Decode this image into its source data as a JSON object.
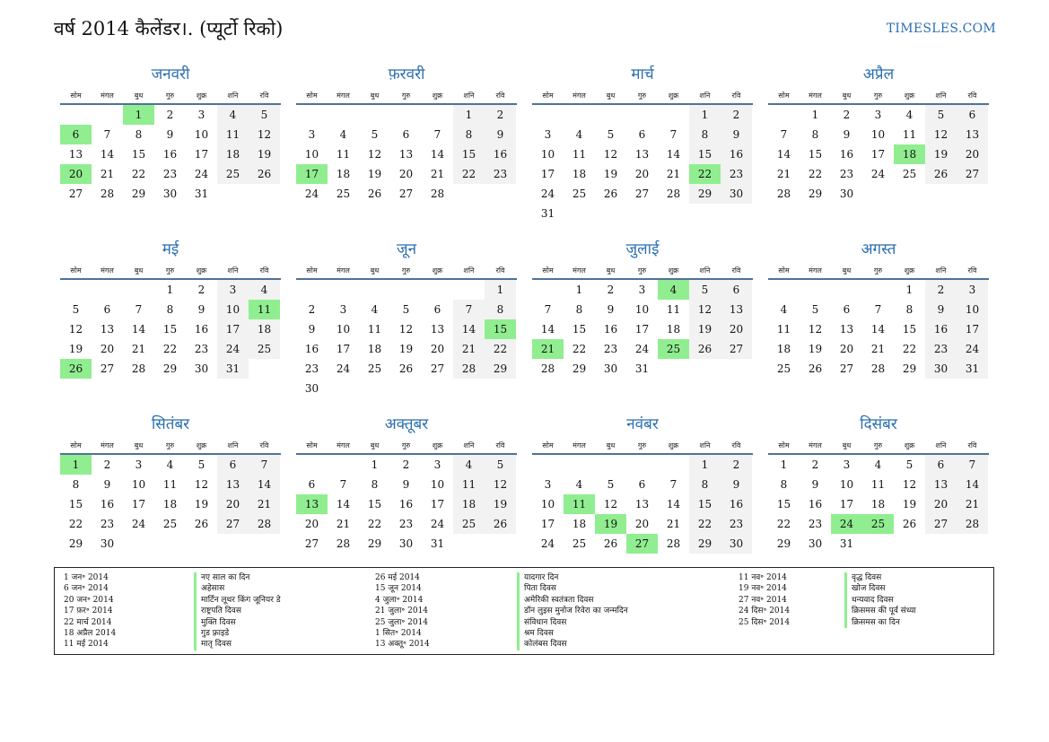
{
  "header": {
    "title": "वर्ष 2014 कैलेंडर।. (प्यूर्टो रिको)",
    "site": "TIMESLES.COM"
  },
  "weekdays": [
    "सोम",
    "मंगल",
    "बुध",
    "गुरु",
    "शुक्र",
    "शनि",
    "रवि"
  ],
  "months": [
    {
      "name": "जनवरी",
      "offset": 2,
      "days": 31,
      "holidays": [
        1,
        6,
        20
      ]
    },
    {
      "name": "फ़रवरी",
      "offset": 5,
      "days": 28,
      "holidays": [
        17
      ]
    },
    {
      "name": "मार्च",
      "offset": 5,
      "days": 31,
      "holidays": [
        22
      ]
    },
    {
      "name": "अप्रैल",
      "offset": 1,
      "days": 30,
      "holidays": [
        18
      ]
    },
    {
      "name": "मई",
      "offset": 3,
      "days": 31,
      "holidays": [
        11,
        26
      ]
    },
    {
      "name": "जून",
      "offset": 6,
      "days": 30,
      "holidays": [
        15
      ]
    },
    {
      "name": "जुलाई",
      "offset": 1,
      "days": 31,
      "holidays": [
        4,
        21,
        25
      ]
    },
    {
      "name": "अगस्त",
      "offset": 4,
      "days": 31,
      "holidays": []
    },
    {
      "name": "सितंबर",
      "offset": 0,
      "days": 30,
      "holidays": [
        1
      ]
    },
    {
      "name": "अक्तूबर",
      "offset": 2,
      "days": 31,
      "holidays": [
        13
      ]
    },
    {
      "name": "नवंबर",
      "offset": 5,
      "days": 30,
      "holidays": [
        11,
        19,
        27
      ]
    },
    {
      "name": "दिसंबर",
      "offset": 0,
      "days": 31,
      "holidays": [
        24,
        25
      ]
    }
  ],
  "holiday_list": {
    "col1_dates": [
      "1 जन॰ 2014",
      "6 जन॰ 2014",
      "20 जन॰ 2014",
      "17 फ़र॰ 2014",
      "22 मार्च 2014",
      "18 अप्रैल 2014",
      "11 मई 2014"
    ],
    "col1_names": [
      "नए साल का दिन",
      "अहेसास",
      "मार्टिन लूथर किंग जूनियर डे",
      "राष्ट्रपति दिवस",
      "मुक्ति दिवस",
      "गुड फ़्राइडे",
      "मातृ दिवस"
    ],
    "col2_dates": [
      "26 मई 2014",
      "15 जून 2014",
      "4 जुला॰ 2014",
      "21 जुला॰ 2014",
      "25 जुला॰ 2014",
      "1 सित॰ 2014",
      "13 अक्तू॰ 2014"
    ],
    "col2_names": [
      "यादगार दिन",
      "पिता दिवस",
      "अमेरिकी स्वतंत्रता दिवस",
      "डॉन लुइस मुनोज रिवेरा का जन्मदिन",
      "संविधान दिवस",
      "श्रम दिवस",
      "कोलंबस दिवस"
    ],
    "col3_dates": [
      "11 नव॰ 2014",
      "19 नव॰ 2014",
      "27 नव॰ 2014",
      "24 दिस॰ 2014",
      "25 दिस॰ 2014"
    ],
    "col3_names": [
      "वृद्ध दिवस",
      "खोज दिवस",
      "धन्यवाद दिवस",
      "क्रिसमस की पूर्व संध्या",
      "क्रिसमस का दिन"
    ]
  }
}
